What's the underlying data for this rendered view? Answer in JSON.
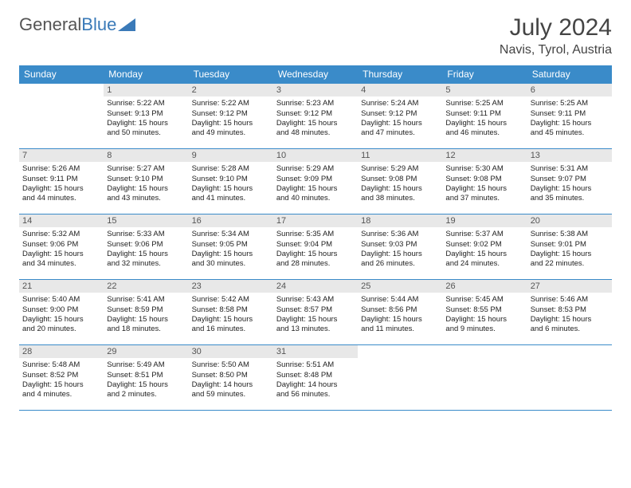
{
  "logo": {
    "text1": "General",
    "text2": "Blue"
  },
  "header": {
    "month": "July 2024",
    "location": "Navis, Tyrol, Austria"
  },
  "colors": {
    "header_bg": "#3a8bc9",
    "border": "#3a8bc9",
    "daynum_bg": "#e8e8e8"
  },
  "dayNames": [
    "Sunday",
    "Monday",
    "Tuesday",
    "Wednesday",
    "Thursday",
    "Friday",
    "Saturday"
  ],
  "weeks": [
    [
      null,
      {
        "n": "1",
        "sr": "Sunrise: 5:22 AM",
        "ss": "Sunset: 9:13 PM",
        "d1": "Daylight: 15 hours",
        "d2": "and 50 minutes."
      },
      {
        "n": "2",
        "sr": "Sunrise: 5:22 AM",
        "ss": "Sunset: 9:12 PM",
        "d1": "Daylight: 15 hours",
        "d2": "and 49 minutes."
      },
      {
        "n": "3",
        "sr": "Sunrise: 5:23 AM",
        "ss": "Sunset: 9:12 PM",
        "d1": "Daylight: 15 hours",
        "d2": "and 48 minutes."
      },
      {
        "n": "4",
        "sr": "Sunrise: 5:24 AM",
        "ss": "Sunset: 9:12 PM",
        "d1": "Daylight: 15 hours",
        "d2": "and 47 minutes."
      },
      {
        "n": "5",
        "sr": "Sunrise: 5:25 AM",
        "ss": "Sunset: 9:11 PM",
        "d1": "Daylight: 15 hours",
        "d2": "and 46 minutes."
      },
      {
        "n": "6",
        "sr": "Sunrise: 5:25 AM",
        "ss": "Sunset: 9:11 PM",
        "d1": "Daylight: 15 hours",
        "d2": "and 45 minutes."
      }
    ],
    [
      {
        "n": "7",
        "sr": "Sunrise: 5:26 AM",
        "ss": "Sunset: 9:11 PM",
        "d1": "Daylight: 15 hours",
        "d2": "and 44 minutes."
      },
      {
        "n": "8",
        "sr": "Sunrise: 5:27 AM",
        "ss": "Sunset: 9:10 PM",
        "d1": "Daylight: 15 hours",
        "d2": "and 43 minutes."
      },
      {
        "n": "9",
        "sr": "Sunrise: 5:28 AM",
        "ss": "Sunset: 9:10 PM",
        "d1": "Daylight: 15 hours",
        "d2": "and 41 minutes."
      },
      {
        "n": "10",
        "sr": "Sunrise: 5:29 AM",
        "ss": "Sunset: 9:09 PM",
        "d1": "Daylight: 15 hours",
        "d2": "and 40 minutes."
      },
      {
        "n": "11",
        "sr": "Sunrise: 5:29 AM",
        "ss": "Sunset: 9:08 PM",
        "d1": "Daylight: 15 hours",
        "d2": "and 38 minutes."
      },
      {
        "n": "12",
        "sr": "Sunrise: 5:30 AM",
        "ss": "Sunset: 9:08 PM",
        "d1": "Daylight: 15 hours",
        "d2": "and 37 minutes."
      },
      {
        "n": "13",
        "sr": "Sunrise: 5:31 AM",
        "ss": "Sunset: 9:07 PM",
        "d1": "Daylight: 15 hours",
        "d2": "and 35 minutes."
      }
    ],
    [
      {
        "n": "14",
        "sr": "Sunrise: 5:32 AM",
        "ss": "Sunset: 9:06 PM",
        "d1": "Daylight: 15 hours",
        "d2": "and 34 minutes."
      },
      {
        "n": "15",
        "sr": "Sunrise: 5:33 AM",
        "ss": "Sunset: 9:06 PM",
        "d1": "Daylight: 15 hours",
        "d2": "and 32 minutes."
      },
      {
        "n": "16",
        "sr": "Sunrise: 5:34 AM",
        "ss": "Sunset: 9:05 PM",
        "d1": "Daylight: 15 hours",
        "d2": "and 30 minutes."
      },
      {
        "n": "17",
        "sr": "Sunrise: 5:35 AM",
        "ss": "Sunset: 9:04 PM",
        "d1": "Daylight: 15 hours",
        "d2": "and 28 minutes."
      },
      {
        "n": "18",
        "sr": "Sunrise: 5:36 AM",
        "ss": "Sunset: 9:03 PM",
        "d1": "Daylight: 15 hours",
        "d2": "and 26 minutes."
      },
      {
        "n": "19",
        "sr": "Sunrise: 5:37 AM",
        "ss": "Sunset: 9:02 PM",
        "d1": "Daylight: 15 hours",
        "d2": "and 24 minutes."
      },
      {
        "n": "20",
        "sr": "Sunrise: 5:38 AM",
        "ss": "Sunset: 9:01 PM",
        "d1": "Daylight: 15 hours",
        "d2": "and 22 minutes."
      }
    ],
    [
      {
        "n": "21",
        "sr": "Sunrise: 5:40 AM",
        "ss": "Sunset: 9:00 PM",
        "d1": "Daylight: 15 hours",
        "d2": "and 20 minutes."
      },
      {
        "n": "22",
        "sr": "Sunrise: 5:41 AM",
        "ss": "Sunset: 8:59 PM",
        "d1": "Daylight: 15 hours",
        "d2": "and 18 minutes."
      },
      {
        "n": "23",
        "sr": "Sunrise: 5:42 AM",
        "ss": "Sunset: 8:58 PM",
        "d1": "Daylight: 15 hours",
        "d2": "and 16 minutes."
      },
      {
        "n": "24",
        "sr": "Sunrise: 5:43 AM",
        "ss": "Sunset: 8:57 PM",
        "d1": "Daylight: 15 hours",
        "d2": "and 13 minutes."
      },
      {
        "n": "25",
        "sr": "Sunrise: 5:44 AM",
        "ss": "Sunset: 8:56 PM",
        "d1": "Daylight: 15 hours",
        "d2": "and 11 minutes."
      },
      {
        "n": "26",
        "sr": "Sunrise: 5:45 AM",
        "ss": "Sunset: 8:55 PM",
        "d1": "Daylight: 15 hours",
        "d2": "and 9 minutes."
      },
      {
        "n": "27",
        "sr": "Sunrise: 5:46 AM",
        "ss": "Sunset: 8:53 PM",
        "d1": "Daylight: 15 hours",
        "d2": "and 6 minutes."
      }
    ],
    [
      {
        "n": "28",
        "sr": "Sunrise: 5:48 AM",
        "ss": "Sunset: 8:52 PM",
        "d1": "Daylight: 15 hours",
        "d2": "and 4 minutes."
      },
      {
        "n": "29",
        "sr": "Sunrise: 5:49 AM",
        "ss": "Sunset: 8:51 PM",
        "d1": "Daylight: 15 hours",
        "d2": "and 2 minutes."
      },
      {
        "n": "30",
        "sr": "Sunrise: 5:50 AM",
        "ss": "Sunset: 8:50 PM",
        "d1": "Daylight: 14 hours",
        "d2": "and 59 minutes."
      },
      {
        "n": "31",
        "sr": "Sunrise: 5:51 AM",
        "ss": "Sunset: 8:48 PM",
        "d1": "Daylight: 14 hours",
        "d2": "and 56 minutes."
      },
      null,
      null,
      null
    ]
  ]
}
